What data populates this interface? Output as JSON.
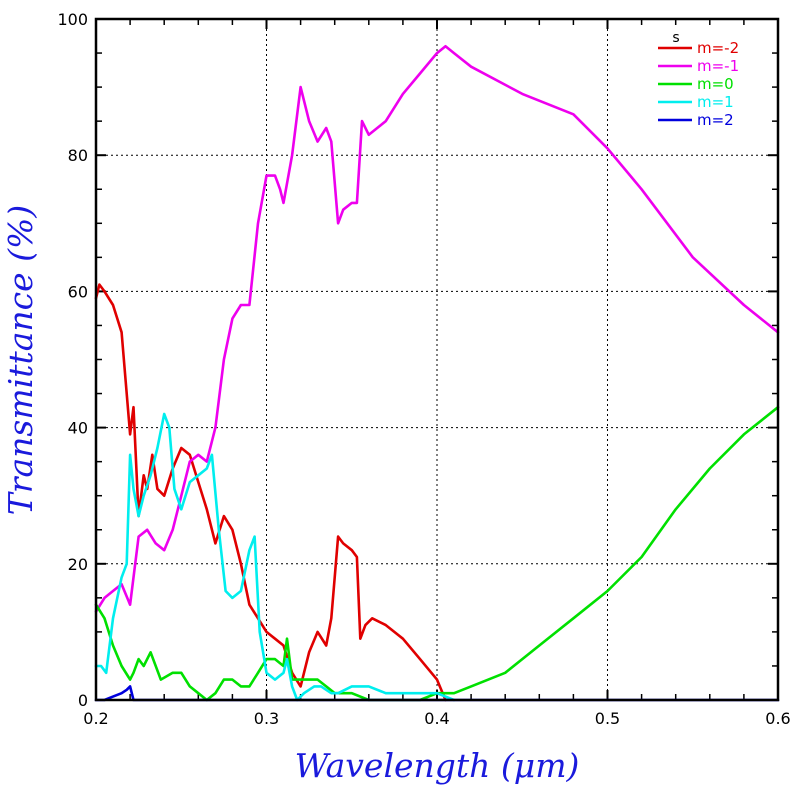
{
  "chart_data": {
    "type": "line",
    "title": "",
    "xlabel": "Wavelength (μm)",
    "ylabel": "Transmittance (%)",
    "xlim": [
      0.2,
      0.6
    ],
    "ylim": [
      0,
      100
    ],
    "x_ticks": [
      "0.2",
      "0.3",
      "0.4",
      "0.5",
      "0.6"
    ],
    "y_ticks": [
      "0",
      "20",
      "40",
      "60",
      "80",
      "100"
    ],
    "grid": true,
    "legend_title": "s",
    "legend_position": "top-right",
    "series": [
      {
        "name": "m=-2",
        "color": "#e00000",
        "x": [
          0.2,
          0.202,
          0.205,
          0.21,
          0.215,
          0.22,
          0.222,
          0.225,
          0.228,
          0.23,
          0.233,
          0.236,
          0.24,
          0.245,
          0.25,
          0.255,
          0.26,
          0.265,
          0.27,
          0.275,
          0.28,
          0.285,
          0.29,
          0.295,
          0.3,
          0.305,
          0.31,
          0.315,
          0.32,
          0.325,
          0.33,
          0.335,
          0.338,
          0.342,
          0.345,
          0.35,
          0.353,
          0.355,
          0.358,
          0.362,
          0.37,
          0.38,
          0.39,
          0.4,
          0.405
        ],
        "y": [
          59,
          61,
          60,
          58,
          54,
          39,
          43,
          27,
          33,
          31,
          36,
          31,
          30,
          34,
          37,
          36,
          32,
          28,
          23,
          27,
          25,
          20,
          14,
          12,
          10,
          9,
          8,
          4,
          2,
          7,
          10,
          8,
          12,
          24,
          23,
          22,
          21,
          9,
          11,
          12,
          11,
          9,
          6,
          3,
          0
        ]
      },
      {
        "name": "m=-1",
        "color": "#ee00ee",
        "x": [
          0.2,
          0.205,
          0.21,
          0.215,
          0.22,
          0.225,
          0.23,
          0.235,
          0.24,
          0.245,
          0.25,
          0.255,
          0.26,
          0.265,
          0.27,
          0.275,
          0.28,
          0.285,
          0.29,
          0.295,
          0.3,
          0.305,
          0.308,
          0.31,
          0.315,
          0.32,
          0.325,
          0.33,
          0.335,
          0.338,
          0.342,
          0.345,
          0.35,
          0.353,
          0.356,
          0.36,
          0.37,
          0.38,
          0.39,
          0.4,
          0.405,
          0.41,
          0.42,
          0.45,
          0.48,
          0.5,
          0.52,
          0.55,
          0.58,
          0.6
        ],
        "y": [
          13,
          15,
          16,
          17,
          14,
          24,
          25,
          23,
          22,
          25,
          30,
          35,
          36,
          35,
          40,
          50,
          56,
          58,
          58,
          70,
          77,
          77,
          75,
          73,
          80,
          90,
          85,
          82,
          84,
          82,
          70,
          72,
          73,
          73,
          85,
          83,
          85,
          89,
          92,
          95,
          96,
          95,
          93,
          89,
          86,
          81,
          75,
          65,
          58,
          54
        ]
      },
      {
        "name": "m=0",
        "color": "#00e000",
        "x": [
          0.2,
          0.205,
          0.21,
          0.215,
          0.22,
          0.222,
          0.225,
          0.228,
          0.232,
          0.238,
          0.245,
          0.25,
          0.255,
          0.26,
          0.265,
          0.27,
          0.275,
          0.28,
          0.285,
          0.29,
          0.295,
          0.3,
          0.305,
          0.31,
          0.312,
          0.315,
          0.32,
          0.325,
          0.33,
          0.335,
          0.34,
          0.35,
          0.36,
          0.37,
          0.38,
          0.39,
          0.4,
          0.41,
          0.42,
          0.44,
          0.46,
          0.48,
          0.5,
          0.52,
          0.54,
          0.56,
          0.58,
          0.6
        ],
        "y": [
          14,
          12,
          8,
          5,
          3,
          4,
          6,
          5,
          7,
          3,
          4,
          4,
          2,
          1,
          0,
          1,
          3,
          3,
          2,
          2,
          4,
          6,
          6,
          5,
          9,
          3,
          3,
          3,
          3,
          2,
          1,
          1,
          0,
          0,
          0,
          0,
          1,
          1,
          2,
          4,
          8,
          12,
          16,
          21,
          28,
          34,
          39,
          43
        ]
      },
      {
        "name": "m=1",
        "color": "#00eeee",
        "x": [
          0.2,
          0.203,
          0.206,
          0.21,
          0.215,
          0.218,
          0.22,
          0.222,
          0.225,
          0.228,
          0.232,
          0.236,
          0.24,
          0.243,
          0.246,
          0.25,
          0.255,
          0.26,
          0.265,
          0.268,
          0.272,
          0.276,
          0.28,
          0.285,
          0.29,
          0.293,
          0.296,
          0.3,
          0.305,
          0.31,
          0.312,
          0.315,
          0.318,
          0.322,
          0.328,
          0.332,
          0.338,
          0.342,
          0.35,
          0.36,
          0.37,
          0.38,
          0.39,
          0.4,
          0.41
        ],
        "y": [
          5,
          5,
          4,
          12,
          18,
          20,
          36,
          31,
          27,
          30,
          33,
          37,
          42,
          40,
          31,
          28,
          32,
          33,
          34,
          36,
          25,
          16,
          15,
          16,
          22,
          24,
          10,
          4,
          3,
          4,
          6,
          2,
          0,
          1,
          2,
          2,
          1,
          1,
          2,
          2,
          1,
          1,
          1,
          1,
          0
        ]
      },
      {
        "name": "m=2",
        "color": "#0000dd",
        "x": [
          0.2,
          0.205,
          0.21,
          0.215,
          0.218,
          0.22,
          0.222,
          0.225,
          0.3,
          0.4,
          0.5,
          0.6
        ],
        "y": [
          0,
          0,
          0.5,
          1,
          1.5,
          2,
          0,
          0,
          0,
          0,
          0,
          0
        ]
      }
    ]
  }
}
